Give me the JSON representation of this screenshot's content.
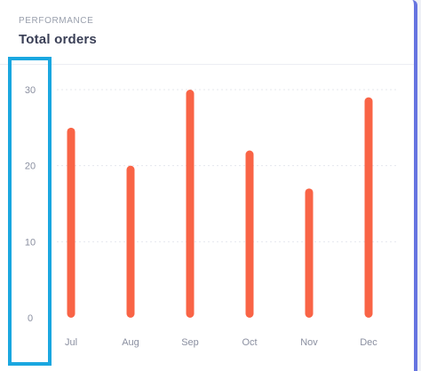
{
  "header": {
    "eyebrow": "PERFORMANCE",
    "title": "Total orders"
  },
  "chart_data": {
    "type": "bar",
    "title": "Total orders",
    "xlabel": "",
    "ylabel": "",
    "categories": [
      "Jul",
      "Aug",
      "Sep",
      "Oct",
      "Nov",
      "Dec"
    ],
    "values": [
      25,
      20,
      30,
      22,
      17,
      29
    ],
    "ylim": [
      0,
      30
    ],
    "yticks": [
      0,
      10,
      20,
      30
    ],
    "ytick_labels": [
      "0",
      "10",
      "20",
      "30"
    ],
    "grid": true,
    "legend": "none",
    "bar_color": "#f96446",
    "grid_color": "#e5e7ee",
    "highlight_color": "#1aa7e0"
  }
}
